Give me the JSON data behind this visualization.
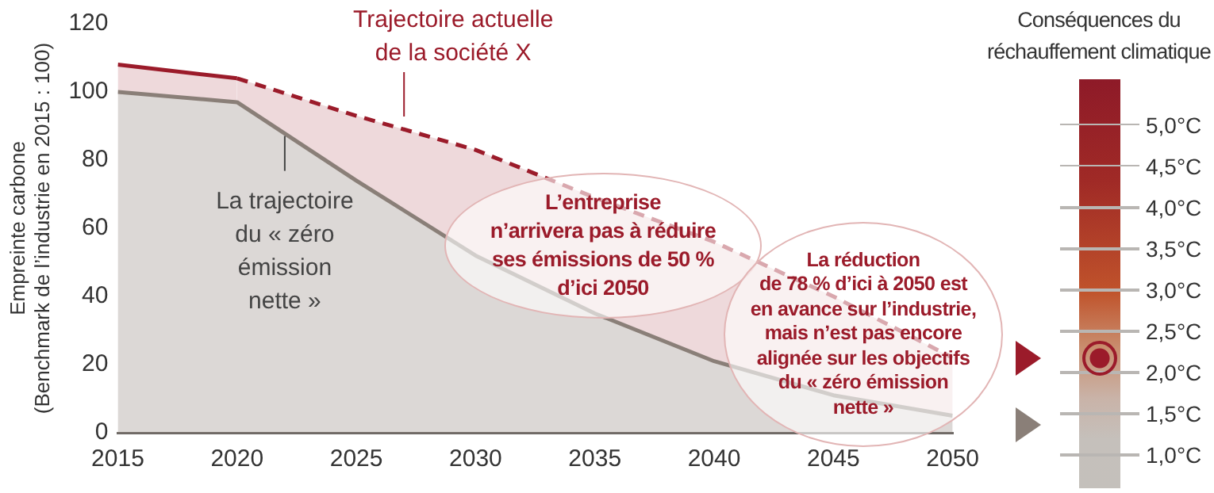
{
  "chart_data": {
    "type": "area",
    "ylabel": "Empreinte carbone\n(Benchmark de l’industrie en 2015 : 100)",
    "xlim": [
      2015,
      2050
    ],
    "xticks": [
      2015,
      2020,
      2025,
      2030,
      2035,
      2040,
      2045,
      2050
    ],
    "ylim": [
      0,
      120
    ],
    "yticks": [
      0,
      20,
      40,
      60,
      80,
      100,
      120
    ],
    "grid": false,
    "legend": false,
    "marker": "none",
    "series": [
      {
        "type": "area",
        "color": "#8a7f78",
        "line_style": "solid",
        "x": [
          2015,
          2020,
          2025,
          2030,
          2035,
          2040,
          2045,
          2050
        ],
        "values": [
          100,
          97,
          74,
          52,
          35,
          21,
          11,
          5
        ]
      },
      {
        "type": "area",
        "color": "#9b1b2a",
        "line_style": "solid",
        "x": [
          2015,
          2020
        ],
        "values": [
          108,
          104
        ]
      },
      {
        "type": "area",
        "color": "#9b1b2a",
        "line_style": "dashed",
        "x": [
          2020,
          2025,
          2030,
          2035,
          2040,
          2045,
          2050
        ],
        "values": [
          104,
          93,
          83,
          69,
          56,
          40,
          22
        ]
      }
    ],
    "annotations": [
      {
        "text": "Trajectoire actuelle\nde la société X",
        "x": 2027,
        "y": 90
      },
      {
        "text": "La trajectoire\ndu « zéro\némission\nnette »",
        "x": 2022,
        "y": 88
      },
      "L’entreprise\nn’arrivera pas à réduire\nses émissions de 50 %\nd’ici 2050",
      "La réduction\nde 78 % d’ici à 2050 est\nen avance sur l’industrie,\nmais n’est pas encore\nalignée sur les objectifs\ndu « zéro émission\nnette »"
    ],
    "clabel": "Conséquences du\nréchauffement climatique",
    "clim": [
      0.6,
      5.55
    ],
    "cticks": [
      {
        "value": 1.0,
        "label": "1,0°C"
      },
      {
        "value": 1.5,
        "label": "1,5°C"
      },
      {
        "value": 2.0,
        "label": "2,0°C"
      },
      {
        "value": 2.5,
        "label": "2,5°C"
      },
      {
        "value": 3.0,
        "label": "3,0°C"
      },
      {
        "value": 3.5,
        "label": "3,5°C"
      },
      {
        "value": 4.0,
        "label": "4,0°C"
      },
      {
        "value": 4.5,
        "label": "4,5°C"
      },
      {
        "value": 5.0,
        "label": "5,0°C"
      }
    ]
  }
}
